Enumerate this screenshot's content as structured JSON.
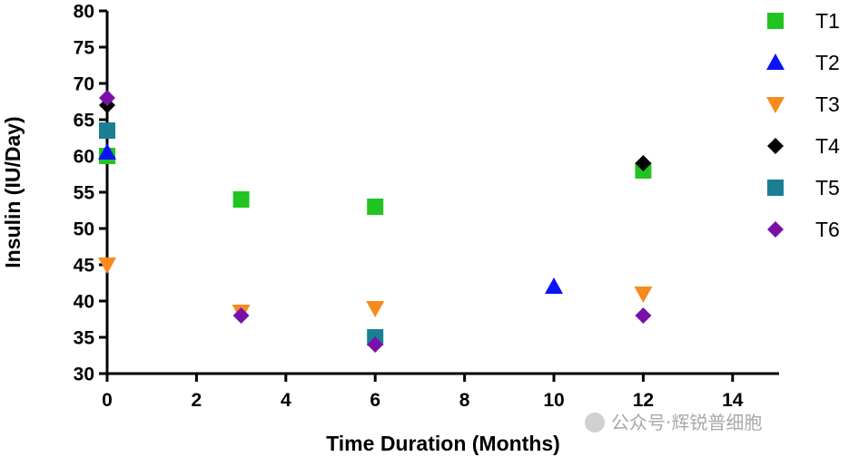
{
  "chart_data": {
    "type": "scatter",
    "title": "",
    "xlabel": "Time Duration (Months)",
    "ylabel": "Insulin (IU/Day)",
    "xlim": [
      0,
      15
    ],
    "ylim": [
      30,
      80
    ],
    "xticks": [
      0,
      2,
      4,
      6,
      8,
      10,
      12,
      14
    ],
    "yticks": [
      30,
      35,
      40,
      45,
      50,
      55,
      60,
      65,
      70,
      75,
      80
    ],
    "legend_position": "right",
    "series": [
      {
        "name": "T1",
        "marker": "square",
        "color": "#22c422",
        "points": [
          {
            "x": 0,
            "y": 60
          },
          {
            "x": 3,
            "y": 54
          },
          {
            "x": 6,
            "y": 53
          },
          {
            "x": 12,
            "y": 58
          }
        ]
      },
      {
        "name": "T2",
        "marker": "triangle-up",
        "color": "#0a14f5",
        "points": [
          {
            "x": 0,
            "y": 60.5
          },
          {
            "x": 10,
            "y": 42
          }
        ]
      },
      {
        "name": "T3",
        "marker": "triangle-down",
        "color": "#f98a1e",
        "points": [
          {
            "x": 0,
            "y": 45
          },
          {
            "x": 3,
            "y": 38.5
          },
          {
            "x": 6,
            "y": 39
          },
          {
            "x": 12,
            "y": 41
          }
        ]
      },
      {
        "name": "T4",
        "marker": "diamond",
        "color": "#000000",
        "points": [
          {
            "x": 0,
            "y": 67
          },
          {
            "x": 12,
            "y": 59
          }
        ]
      },
      {
        "name": "T5",
        "marker": "square",
        "color": "#1a7f94",
        "points": [
          {
            "x": 0,
            "y": 63.5
          },
          {
            "x": 6,
            "y": 35
          }
        ]
      },
      {
        "name": "T6",
        "marker": "diamond",
        "color": "#7a10a8",
        "points": [
          {
            "x": 0,
            "y": 68
          },
          {
            "x": 3,
            "y": 38
          },
          {
            "x": 6,
            "y": 34
          },
          {
            "x": 12,
            "y": 38
          }
        ]
      }
    ]
  },
  "watermark": {
    "text": "公众号·辉锐普细胞"
  }
}
